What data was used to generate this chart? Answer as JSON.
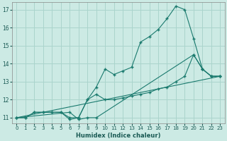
{
  "xlabel": "Humidex (Indice chaleur)",
  "bg_color": "#cceae4",
  "grid_color": "#aad4cc",
  "line_color": "#1a7a6e",
  "xlim": [
    -0.5,
    23.5
  ],
  "ylim": [
    10.7,
    17.4
  ],
  "yticks": [
    11,
    12,
    13,
    14,
    15,
    16,
    17
  ],
  "xticks": [
    0,
    1,
    2,
    3,
    4,
    5,
    6,
    7,
    8,
    9,
    10,
    11,
    12,
    13,
    14,
    15,
    16,
    17,
    18,
    19,
    20,
    21,
    22,
    23
  ],
  "line1_x": [
    0,
    1,
    2,
    3,
    4,
    5,
    6,
    7,
    8,
    9,
    10,
    11,
    12,
    13,
    14,
    15,
    16,
    17,
    18,
    19,
    20,
    21,
    22,
    23
  ],
  "line1_y": [
    11.0,
    11.0,
    11.3,
    11.3,
    11.3,
    11.3,
    11.0,
    11.0,
    12.0,
    12.7,
    13.7,
    13.4,
    13.6,
    13.8,
    15.2,
    15.5,
    15.9,
    16.5,
    17.2,
    17.0,
    15.4,
    13.7,
    13.3,
    13.3
  ],
  "line2_x": [
    0,
    1,
    2,
    3,
    4,
    5,
    6,
    7,
    8,
    9,
    10,
    11,
    12,
    13,
    14,
    15,
    16,
    17,
    18,
    19,
    20,
    21,
    22,
    23
  ],
  "line2_y": [
    11.0,
    11.0,
    11.3,
    11.3,
    11.3,
    11.3,
    10.9,
    11.0,
    12.0,
    12.3,
    12.0,
    12.0,
    12.1,
    12.2,
    12.3,
    12.4,
    12.6,
    12.7,
    13.0,
    13.3,
    14.5,
    13.7,
    13.3,
    13.3
  ],
  "line3_x": [
    0,
    6,
    7,
    8,
    9,
    20,
    21,
    22,
    23
  ],
  "line3_y": [
    11.0,
    11.3,
    10.9,
    11.0,
    11.0,
    14.5,
    13.7,
    13.3,
    13.3
  ],
  "line4_x": [
    0,
    23
  ],
  "line4_y": [
    11.0,
    13.3
  ]
}
